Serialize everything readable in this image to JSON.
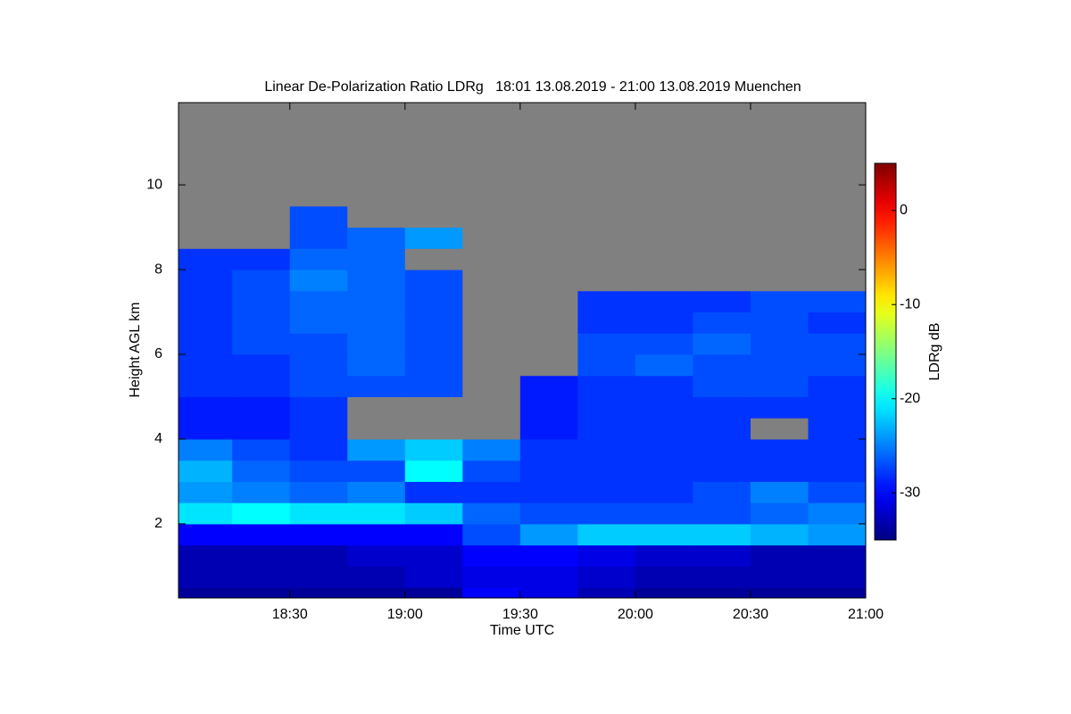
{
  "chart_data": {
    "type": "heatmap",
    "title": "Linear De-Polarization Ratio LDRg   18:01 13.08.2019 - 21:00 13.08.2019 Muenchen",
    "x_label": "Time UTC",
    "y_label": "Height AGL km",
    "colorbar_label": "LDRg dB",
    "x_edges": [
      18,
      18.25,
      18.5,
      18.75,
      19,
      19.25,
      19.5,
      19.75,
      20,
      20.25,
      20.5,
      20.75,
      21
    ],
    "y_edges": [
      0,
      0.5,
      1,
      1.5,
      2,
      2.5,
      3,
      3.5,
      4,
      4.5,
      5,
      5.5,
      6,
      6.5,
      7,
      7.5,
      8,
      8.5,
      9,
      9.5,
      10,
      10.5,
      11,
      11.5,
      12
    ],
    "z": [
      [
        -34,
        -34,
        -34,
        -34,
        -34,
        -30,
        -31,
        -33,
        -34,
        -34,
        -34,
        -34
      ],
      [
        -33,
        -33,
        -33,
        -33,
        -32,
        -31,
        -31,
        -32,
        -33,
        -33,
        -33,
        -33
      ],
      [
        -33,
        -33,
        -33,
        -32,
        -32,
        -30,
        -30,
        -31,
        -32,
        -32,
        -33,
        -33
      ],
      [
        -30,
        -30,
        -30,
        -30,
        -30,
        -27,
        -24,
        -22,
        -22,
        -22,
        -23,
        -24
      ],
      [
        -21,
        -20,
        -21,
        -21,
        -22,
        -26,
        -27,
        -27,
        -27,
        -27,
        -26,
        -25
      ],
      [
        -24,
        -25,
        -26,
        -25,
        -28,
        -28,
        -28,
        -28,
        -28,
        -27,
        -25,
        -27
      ],
      [
        -23,
        -26,
        -27,
        -27,
        -20,
        -27,
        -28,
        -28,
        -28,
        -28,
        -28,
        -28
      ],
      [
        -25,
        -27,
        -28,
        -24,
        -22,
        -25,
        -28,
        -28,
        -28,
        -28,
        -28,
        -28
      ],
      [
        -29,
        -29,
        -28,
        null,
        null,
        null,
        -29,
        -28,
        -28,
        -28,
        null,
        -28
      ],
      [
        -29,
        -29,
        -28,
        null,
        null,
        null,
        -29,
        -28,
        -28,
        -28,
        -28,
        -28
      ],
      [
        -28,
        -28,
        -27,
        -27,
        -27,
        null,
        -29,
        -28,
        -28,
        -27,
        -27,
        -28
      ],
      [
        -28,
        -28,
        -27,
        -26,
        -27,
        null,
        null,
        -27,
        -26,
        -27,
        -27,
        -27
      ],
      [
        -28,
        -27,
        -27,
        -26,
        -27,
        null,
        null,
        -27,
        -27,
        -26,
        -27,
        -27
      ],
      [
        -28,
        -27,
        -26,
        -26,
        -27,
        null,
        null,
        -28,
        -28,
        -27,
        -27,
        -28
      ],
      [
        -28,
        -27,
        -26,
        -26,
        -27,
        null,
        null,
        -28,
        -28,
        -28,
        -27,
        -27
      ],
      [
        -28,
        -27,
        -25,
        -26,
        -27,
        null,
        null,
        null,
        null,
        null,
        null,
        null
      ],
      [
        -28,
        -28,
        -26,
        -26,
        null,
        null,
        null,
        null,
        null,
        null,
        null,
        null
      ],
      [
        null,
        null,
        -27,
        -26,
        -24,
        null,
        null,
        null,
        null,
        null,
        null,
        null
      ],
      [
        null,
        null,
        -27,
        null,
        null,
        null,
        null,
        null,
        null,
        null,
        null,
        null
      ],
      [
        null,
        null,
        null,
        null,
        null,
        null,
        null,
        null,
        null,
        null,
        null,
        null
      ],
      [
        null,
        null,
        null,
        null,
        null,
        null,
        null,
        null,
        null,
        null,
        null,
        null
      ],
      [
        null,
        null,
        null,
        null,
        null,
        null,
        null,
        null,
        null,
        null,
        null,
        null
      ],
      [
        null,
        null,
        null,
        null,
        null,
        null,
        null,
        null,
        null,
        null,
        null,
        null
      ],
      [
        null,
        null,
        null,
        null,
        null,
        null,
        null,
        null,
        null,
        null,
        null,
        null
      ]
    ],
    "xlim": [
      18.0167,
      21
    ],
    "xticks": [
      {
        "value": 18.5,
        "label": "18:30"
      },
      {
        "value": 19,
        "label": "19:00"
      },
      {
        "value": 19.5,
        "label": "19:30"
      },
      {
        "value": 20,
        "label": "20:00"
      },
      {
        "value": 20.5,
        "label": "20:30"
      },
      {
        "value": 21,
        "label": "21:00"
      }
    ],
    "ylim": [
      0.25,
      11.94
    ],
    "yticks": [
      2,
      4,
      6,
      8,
      10
    ],
    "clim": [
      -35,
      5
    ],
    "cticks": [
      -30,
      -20,
      -10,
      0
    ],
    "colormap": "jet",
    "missing_color": "#808080"
  }
}
